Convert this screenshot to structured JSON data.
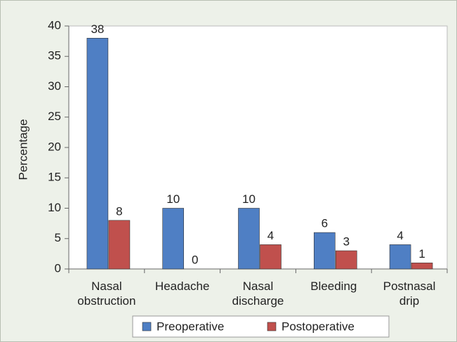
{
  "chart_data": {
    "type": "bar",
    "y_label": "Percentage",
    "categories": [
      "Nasal obstruction",
      "Headache",
      "Nasal discharge",
      "Bleeding",
      "Postnasal drip"
    ],
    "series": [
      {
        "name": "Preoperative",
        "color": "#4f7fc4",
        "values": [
          38,
          10,
          10,
          6,
          4
        ]
      },
      {
        "name": "Postoperative",
        "color": "#c0504d",
        "values": [
          8,
          0,
          4,
          3,
          1
        ]
      }
    ],
    "ylim": [
      0,
      40
    ],
    "yticks": [
      0,
      5,
      10,
      15,
      20,
      25,
      30,
      35,
      40
    ],
    "grid": false,
    "legend": "bottom"
  }
}
